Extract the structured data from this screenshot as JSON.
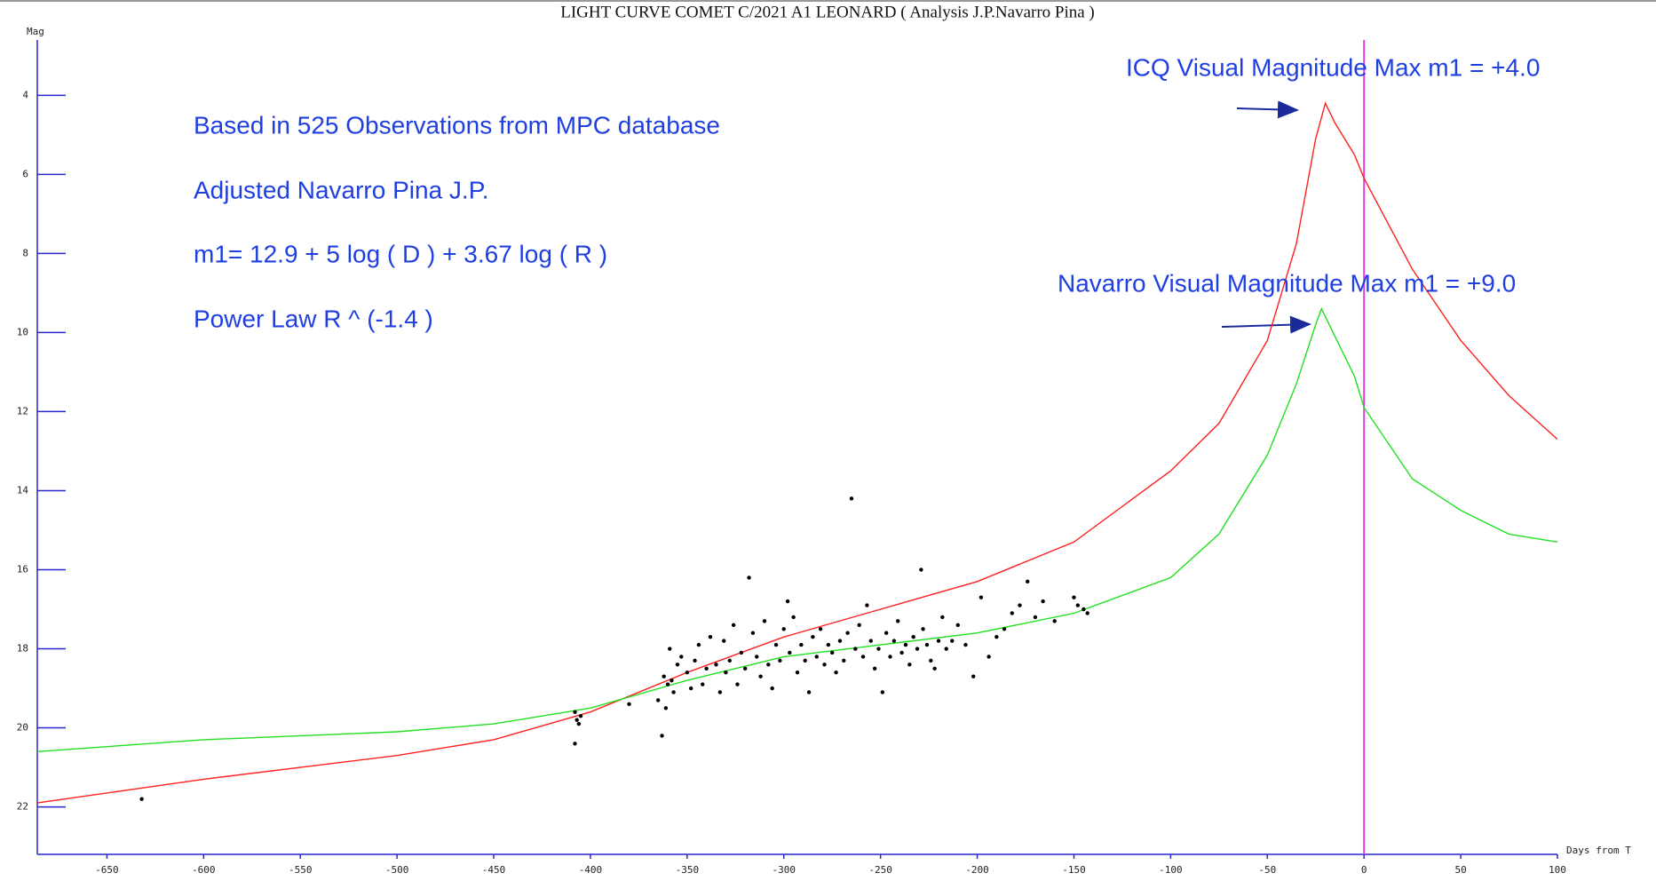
{
  "chart_data": {
    "type": "line",
    "title": "LIGHT CURVE COMET C/2021 A1 LEONARD ( Analysis J.P.Navarro Pina )",
    "y_label": "Mag",
    "x_label": "Days from T",
    "xlim": [
      -686,
      100
    ],
    "ylim": [
      23.2,
      2.6
    ],
    "xticks": [
      -650,
      -600,
      -550,
      -500,
      -450,
      -400,
      -350,
      -300,
      -250,
      -200,
      -150,
      -100,
      -50,
      0,
      50,
      100
    ],
    "yticks": [
      4,
      6,
      8,
      10,
      12,
      14,
      16,
      18,
      20,
      22
    ],
    "axis_color": "#2828d0",
    "reference_line": {
      "x": 0,
      "color": "#e040e0"
    },
    "annotations": [
      "Based in 525 Observations from MPC database",
      "Adjusted Navarro Pina J.P.",
      "m1= 12.9 + 5 log ( D ) + 3.67 log ( R )",
      "Power Law R ^ (-1.4 )",
      "ICQ Visual Magnitude Max m1 = +4.0",
      "Navarro Visual Magnitude Max  m1 = +9.0"
    ],
    "annotation_color": "#1f3fe0",
    "series": [
      {
        "type": "line",
        "color": "#ff2020",
        "x": [
          -686,
          -600,
          -500,
          -450,
          -400,
          -350,
          -300,
          -250,
          -200,
          -150,
          -100,
          -75,
          -50,
          -35,
          -25,
          -20,
          -15,
          -5,
          0,
          25,
          50,
          75,
          100
        ],
        "values": [
          21.9,
          21.3,
          20.7,
          20.3,
          19.6,
          18.6,
          17.7,
          17.0,
          16.3,
          15.3,
          13.5,
          12.3,
          10.2,
          7.75,
          5.1,
          4.2,
          4.7,
          5.5,
          6.1,
          8.4,
          10.2,
          11.6,
          12.7
        ]
      },
      {
        "type": "line",
        "color": "#20e020",
        "x": [
          -686,
          -600,
          -500,
          -450,
          -400,
          -350,
          -300,
          -250,
          -200,
          -150,
          -100,
          -75,
          -50,
          -35,
          -25,
          -22,
          -15,
          -5,
          0,
          25,
          50,
          75,
          100
        ],
        "values": [
          20.6,
          20.3,
          20.1,
          19.9,
          19.5,
          18.8,
          18.2,
          17.9,
          17.6,
          17.1,
          16.2,
          15.1,
          13.1,
          11.3,
          9.8,
          9.4,
          10.1,
          11.1,
          11.9,
          13.7,
          14.5,
          15.1,
          15.3
        ]
      },
      {
        "type": "scatter",
        "color": "#000000",
        "x": [
          -632,
          -408,
          -408,
          -407,
          -406,
          -405,
          -380,
          -365,
          -363,
          -362,
          -361,
          -360,
          -359,
          -358,
          -357,
          -355,
          -353,
          -350,
          -348,
          -346,
          -344,
          -342,
          -340,
          -338,
          -335,
          -333,
          -331,
          -330,
          -328,
          -326,
          -324,
          -322,
          -320,
          -318,
          -316,
          -314,
          -312,
          -310,
          -308,
          -306,
          -304,
          -302,
          -300,
          -298,
          -297,
          -295,
          -293,
          -291,
          -289,
          -287,
          -285,
          -283,
          -281,
          -279,
          -277,
          -275,
          -273,
          -271,
          -269,
          -267,
          -265,
          -263,
          -261,
          -259,
          -257,
          -255,
          -253,
          -251,
          -249,
          -247,
          -245,
          -243,
          -241,
          -239,
          -237,
          -235,
          -233,
          -231,
          -229,
          -228,
          -226,
          -224,
          -222,
          -220,
          -218,
          -216,
          -213,
          -210,
          -206,
          -202,
          -198,
          -194,
          -190,
          -186,
          -182,
          -178,
          -174,
          -170,
          -166,
          -160,
          -150,
          -148,
          -145,
          -143
        ],
        "values": [
          21.8,
          20.4,
          19.6,
          19.8,
          19.9,
          19.7,
          19.4,
          19.3,
          20.2,
          18.7,
          19.5,
          18.9,
          18.0,
          18.8,
          19.1,
          18.4,
          18.2,
          18.6,
          19.0,
          18.3,
          17.9,
          18.9,
          18.5,
          17.7,
          18.4,
          19.1,
          17.8,
          18.6,
          18.3,
          17.4,
          18.9,
          18.1,
          18.5,
          16.2,
          17.6,
          18.2,
          18.7,
          17.3,
          18.4,
          19.0,
          17.9,
          18.3,
          17.5,
          16.8,
          18.1,
          17.2,
          18.6,
          17.9,
          18.3,
          19.1,
          17.7,
          18.2,
          17.5,
          18.4,
          17.9,
          18.1,
          18.6,
          17.8,
          18.3,
          17.6,
          14.2,
          18.0,
          17.4,
          18.2,
          16.9,
          17.8,
          18.5,
          18.0,
          19.1,
          17.6,
          18.2,
          17.8,
          17.3,
          18.1,
          17.9,
          18.4,
          17.7,
          18.0,
          16.0,
          17.5,
          17.9,
          18.3,
          18.5,
          17.8,
          17.2,
          18.0,
          17.8,
          17.4,
          17.9,
          18.7,
          16.7,
          18.2,
          17.7,
          17.5,
          17.1,
          16.9,
          16.3,
          17.2,
          16.8,
          17.3,
          16.7,
          16.9,
          17.0,
          17.1
        ]
      }
    ]
  }
}
